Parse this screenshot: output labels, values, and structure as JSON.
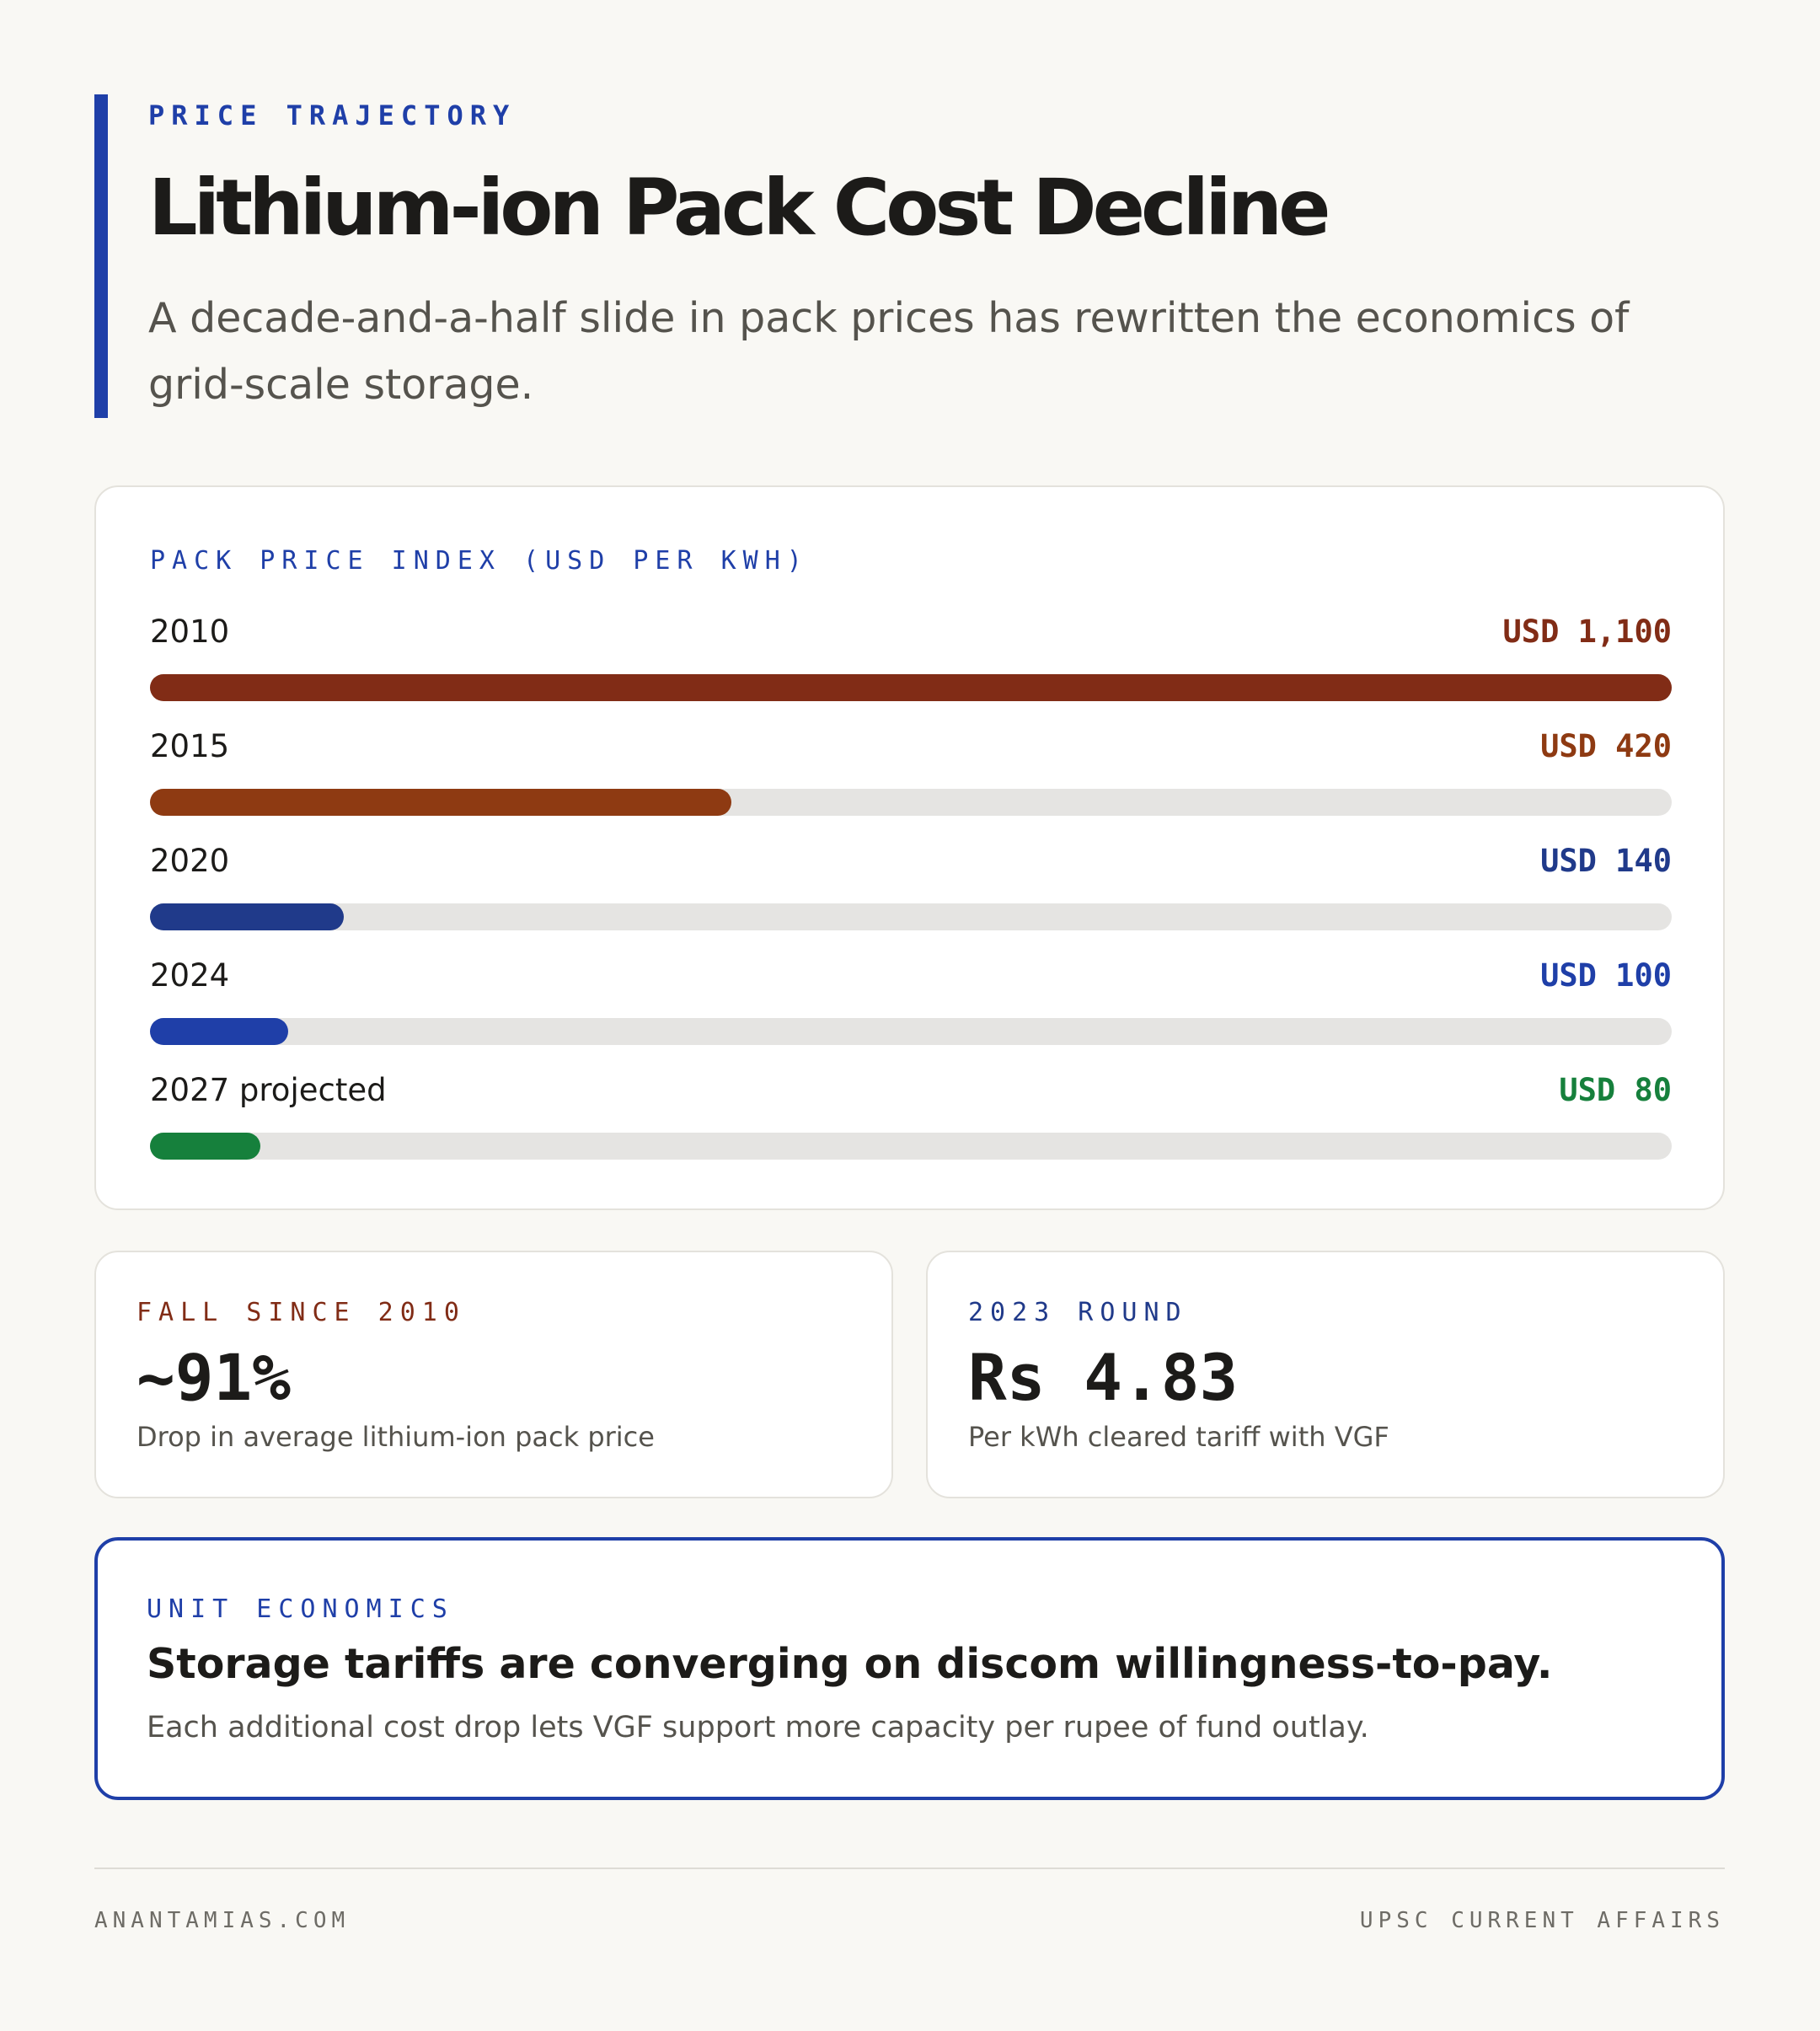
{
  "header": {
    "kicker": "PRICE TRAJECTORY",
    "title": "Lithium-ion Pack Cost Decline",
    "subtitle": "A decade-and-a-half slide in pack prices has rewritten the economics of grid-scale storage."
  },
  "colors": {
    "accent": "#1f3fa8",
    "track": "#e5e4e2"
  },
  "chart_data": {
    "type": "bar",
    "orientation": "horizontal",
    "title": "PACK PRICE INDEX (USD PER KWH)",
    "xlim": [
      0,
      1100
    ],
    "grid": false,
    "legend": "none",
    "categories": [
      "2010",
      "2015",
      "2020",
      "2024",
      "2027 projected"
    ],
    "values": [
      1100,
      420,
      140,
      100,
      80
    ],
    "value_labels": [
      "USD 1,100",
      "USD 420",
      "USD 140",
      "USD 100",
      "USD 80"
    ],
    "colors": [
      "#812c16",
      "#8e3a12",
      "#203a8a",
      "#1f3fa8",
      "#16803c"
    ]
  },
  "stats": [
    {
      "label": "FALL SINCE 2010",
      "value": "~91%",
      "caption": "Drop in average lithium-ion pack price",
      "color": "#812c16"
    },
    {
      "label": "2023 ROUND",
      "value": "Rs 4.83",
      "caption": "Per kWh cleared tariff with VGF",
      "color": "#203a8a"
    }
  ],
  "callout": {
    "label": "UNIT ECONOMICS",
    "headline": "Storage tariffs are converging on discom willingness-to-pay.",
    "body": "Each additional cost drop lets VGF support more capacity per rupee of fund outlay."
  },
  "footer": {
    "left": "ANANTAMIAS.COM",
    "right": "UPSC CURRENT AFFAIRS"
  }
}
